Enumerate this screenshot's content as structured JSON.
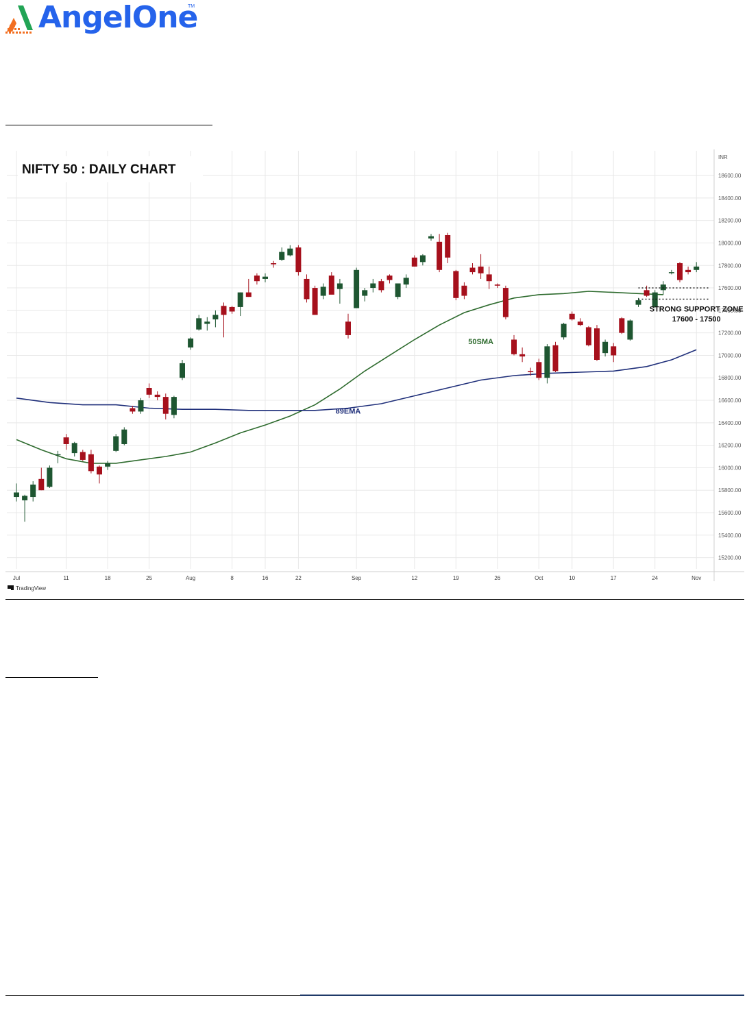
{
  "brand": {
    "name": "AngelOne",
    "tm": "TM",
    "colors": {
      "text": "#2563eb",
      "mark_green": "#22a455",
      "mark_orange": "#f26f21"
    }
  },
  "chart_data": {
    "type": "candlestick",
    "title": "NIFTY 50 : DAILY CHART",
    "currency": "INR",
    "watermark": "TradingView",
    "ylim": [
      15100,
      18820
    ],
    "y_ticks": [
      15200,
      15400,
      15600,
      15800,
      16000,
      16200,
      16400,
      16600,
      16800,
      17000,
      17200,
      17400,
      17600,
      17800,
      18000,
      18200,
      18400,
      18600
    ],
    "y_tick_labels": [
      "15200.00",
      "15400.00",
      "15600.00",
      "15800.00",
      "16000.00",
      "16200.00",
      "16400.00",
      "16600.00",
      "16800.00",
      "17000.00",
      "17200.00",
      "17400.00",
      "17600.00",
      "17800.00",
      "18000.00",
      "18200.00",
      "18400.00",
      "18600.00"
    ],
    "x_ticks": [
      {
        "label": "Jul",
        "i": 0
      },
      {
        "label": "11",
        "i": 6
      },
      {
        "label": "18",
        "i": 11
      },
      {
        "label": "25",
        "i": 16
      },
      {
        "label": "Aug",
        "i": 21
      },
      {
        "label": "8",
        "i": 26
      },
      {
        "label": "16",
        "i": 30
      },
      {
        "label": "22",
        "i": 34
      },
      {
        "label": "Sep",
        "i": 41
      },
      {
        "label": "12",
        "i": 48
      },
      {
        "label": "19",
        "i": 53
      },
      {
        "label": "26",
        "i": 58
      },
      {
        "label": "Oct",
        "i": 63
      },
      {
        "label": "10",
        "i": 67
      },
      {
        "label": "17",
        "i": 72
      },
      {
        "label": "24",
        "i": 77
      },
      {
        "label": "Nov",
        "i": 82
      }
    ],
    "colors": {
      "up": "#1e5631",
      "down": "#a6101c",
      "sma50": "#2e6b2e",
      "ema89": "#1f2f7a",
      "grid": "#e8e8e8"
    },
    "candles": [
      {
        "o": 15740,
        "h": 15860,
        "l": 15700,
        "c": 15780
      },
      {
        "o": 15710,
        "h": 15760,
        "l": 15520,
        "c": 15750
      },
      {
        "o": 15740,
        "h": 15880,
        "l": 15700,
        "c": 15850
      },
      {
        "o": 15900,
        "h": 16000,
        "l": 15800,
        "c": 15800
      },
      {
        "o": 15830,
        "h": 16020,
        "l": 15820,
        "c": 16000
      },
      {
        "o": 16120,
        "h": 16150,
        "l": 16040,
        "c": 16120
      },
      {
        "o": 16270,
        "h": 16300,
        "l": 16160,
        "c": 16210
      },
      {
        "o": 16130,
        "h": 16230,
        "l": 16100,
        "c": 16220
      },
      {
        "o": 16140,
        "h": 16160,
        "l": 16060,
        "c": 16070
      },
      {
        "o": 16120,
        "h": 16160,
        "l": 15950,
        "c": 15970
      },
      {
        "o": 16010,
        "h": 16020,
        "l": 15860,
        "c": 15940
      },
      {
        "o": 16010,
        "h": 16060,
        "l": 15980,
        "c": 16040
      },
      {
        "o": 16150,
        "h": 16300,
        "l": 16140,
        "c": 16280
      },
      {
        "o": 16210,
        "h": 16360,
        "l": 16200,
        "c": 16340
      },
      {
        "o": 16530,
        "h": 16550,
        "l": 16480,
        "c": 16500
      },
      {
        "o": 16500,
        "h": 16620,
        "l": 16480,
        "c": 16600
      },
      {
        "o": 16710,
        "h": 16750,
        "l": 16620,
        "c": 16650
      },
      {
        "o": 16650,
        "h": 16680,
        "l": 16600,
        "c": 16630
      },
      {
        "o": 16630,
        "h": 16660,
        "l": 16430,
        "c": 16480
      },
      {
        "o": 16470,
        "h": 16640,
        "l": 16440,
        "c": 16630
      },
      {
        "o": 16800,
        "h": 16960,
        "l": 16780,
        "c": 16930
      },
      {
        "o": 17070,
        "h": 17160,
        "l": 17050,
        "c": 17150
      },
      {
        "o": 17230,
        "h": 17360,
        "l": 17220,
        "c": 17330
      },
      {
        "o": 17280,
        "h": 17340,
        "l": 17220,
        "c": 17300
      },
      {
        "o": 17320,
        "h": 17400,
        "l": 17250,
        "c": 17360
      },
      {
        "o": 17440,
        "h": 17470,
        "l": 17160,
        "c": 17360
      },
      {
        "o": 17430,
        "h": 17440,
        "l": 17370,
        "c": 17390
      },
      {
        "o": 17430,
        "h": 17560,
        "l": 17350,
        "c": 17560
      },
      {
        "o": 17560,
        "h": 17680,
        "l": 17520,
        "c": 17520
      },
      {
        "o": 17710,
        "h": 17730,
        "l": 17630,
        "c": 17660
      },
      {
        "o": 17680,
        "h": 17730,
        "l": 17650,
        "c": 17700
      },
      {
        "o": 17820,
        "h": 17840,
        "l": 17780,
        "c": 17810
      },
      {
        "o": 17850,
        "h": 17960,
        "l": 17840,
        "c": 17920
      },
      {
        "o": 17890,
        "h": 17980,
        "l": 17880,
        "c": 17950
      },
      {
        "o": 17960,
        "h": 17980,
        "l": 17710,
        "c": 17740
      },
      {
        "o": 17680,
        "h": 17720,
        "l": 17470,
        "c": 17500
      },
      {
        "o": 17600,
        "h": 17620,
        "l": 17360,
        "c": 17360
      },
      {
        "o": 17530,
        "h": 17640,
        "l": 17500,
        "c": 17610
      },
      {
        "o": 17710,
        "h": 17740,
        "l": 17570,
        "c": 17540
      },
      {
        "o": 17590,
        "h": 17680,
        "l": 17460,
        "c": 17640
      },
      {
        "o": 17300,
        "h": 17370,
        "l": 17150,
        "c": 17180
      },
      {
        "o": 17420,
        "h": 17780,
        "l": 17420,
        "c": 17760
      },
      {
        "o": 17530,
        "h": 17600,
        "l": 17480,
        "c": 17580
      },
      {
        "o": 17600,
        "h": 17680,
        "l": 17560,
        "c": 17640
      },
      {
        "o": 17660,
        "h": 17680,
        "l": 17560,
        "c": 17580
      },
      {
        "o": 17710,
        "h": 17720,
        "l": 17640,
        "c": 17670
      },
      {
        "o": 17520,
        "h": 17640,
        "l": 17500,
        "c": 17640
      },
      {
        "o": 17630,
        "h": 17720,
        "l": 17600,
        "c": 17690
      },
      {
        "o": 17870,
        "h": 17890,
        "l": 17790,
        "c": 17790
      },
      {
        "o": 17830,
        "h": 17900,
        "l": 17800,
        "c": 17890
      },
      {
        "o": 18040,
        "h": 18080,
        "l": 18020,
        "c": 18060
      },
      {
        "o": 18010,
        "h": 18080,
        "l": 17740,
        "c": 17760
      },
      {
        "o": 18070,
        "h": 18090,
        "l": 17820,
        "c": 17870
      },
      {
        "o": 17750,
        "h": 17760,
        "l": 17490,
        "c": 17510
      },
      {
        "o": 17620,
        "h": 17650,
        "l": 17500,
        "c": 17530
      },
      {
        "o": 17780,
        "h": 17820,
        "l": 17720,
        "c": 17740
      },
      {
        "o": 17790,
        "h": 17900,
        "l": 17680,
        "c": 17730
      },
      {
        "o": 17720,
        "h": 17790,
        "l": 17590,
        "c": 17660
      },
      {
        "o": 17630,
        "h": 17640,
        "l": 17600,
        "c": 17620
      },
      {
        "o": 17600,
        "h": 17620,
        "l": 17320,
        "c": 17340
      },
      {
        "o": 17140,
        "h": 17180,
        "l": 17000,
        "c": 17010
      },
      {
        "o": 17010,
        "h": 17070,
        "l": 16940,
        "c": 16990
      },
      {
        "o": 16860,
        "h": 16890,
        "l": 16820,
        "c": 16850
      },
      {
        "o": 16940,
        "h": 16970,
        "l": 16780,
        "c": 16800
      },
      {
        "o": 16800,
        "h": 17100,
        "l": 16750,
        "c": 17080
      },
      {
        "o": 17090,
        "h": 17120,
        "l": 16850,
        "c": 16860
      },
      {
        "o": 17160,
        "h": 17290,
        "l": 17140,
        "c": 17280
      },
      {
        "o": 17370,
        "h": 17390,
        "l": 17310,
        "c": 17320
      },
      {
        "o": 17300,
        "h": 17330,
        "l": 17260,
        "c": 17270
      },
      {
        "o": 17250,
        "h": 17260,
        "l": 17080,
        "c": 17090
      },
      {
        "o": 17240,
        "h": 17270,
        "l": 16950,
        "c": 16960
      },
      {
        "o": 17020,
        "h": 17140,
        "l": 16990,
        "c": 17120
      },
      {
        "o": 17080,
        "h": 17110,
        "l": 16940,
        "c": 17000
      },
      {
        "o": 17330,
        "h": 17340,
        "l": 17190,
        "c": 17200
      },
      {
        "o": 17140,
        "h": 17320,
        "l": 17130,
        "c": 17310
      },
      {
        "o": 17450,
        "h": 17510,
        "l": 17430,
        "c": 17490
      },
      {
        "o": 17580,
        "h": 17620,
        "l": 17520,
        "c": 17530
      },
      {
        "o": 17430,
        "h": 17580,
        "l": 17420,
        "c": 17560
      },
      {
        "o": 17580,
        "h": 17660,
        "l": 17540,
        "c": 17630
      },
      {
        "o": 17740,
        "h": 17760,
        "l": 17720,
        "c": 17740
      },
      {
        "o": 17820,
        "h": 17830,
        "l": 17650,
        "c": 17670
      },
      {
        "o": 17760,
        "h": 17790,
        "l": 17720,
        "c": 17740
      },
      {
        "o": 17760,
        "h": 17830,
        "l": 17740,
        "c": 17790
      }
    ],
    "series": [
      {
        "name": "50SMA",
        "points": [
          [
            0,
            16250
          ],
          [
            3,
            16160
          ],
          [
            6,
            16080
          ],
          [
            9,
            16040
          ],
          [
            12,
            16040
          ],
          [
            15,
            16070
          ],
          [
            18,
            16100
          ],
          [
            21,
            16140
          ],
          [
            24,
            16220
          ],
          [
            27,
            16310
          ],
          [
            30,
            16380
          ],
          [
            33,
            16460
          ],
          [
            36,
            16560
          ],
          [
            39,
            16700
          ],
          [
            42,
            16860
          ],
          [
            45,
            17000
          ],
          [
            48,
            17140
          ],
          [
            51,
            17270
          ],
          [
            54,
            17380
          ],
          [
            57,
            17450
          ],
          [
            60,
            17510
          ],
          [
            63,
            17540
          ],
          [
            66,
            17550
          ],
          [
            69,
            17570
          ],
          [
            72,
            17560
          ],
          [
            75,
            17550
          ],
          [
            78,
            17540
          ]
        ]
      },
      {
        "name": "89EMA",
        "points": [
          [
            0,
            16620
          ],
          [
            4,
            16580
          ],
          [
            8,
            16560
          ],
          [
            12,
            16560
          ],
          [
            16,
            16530
          ],
          [
            20,
            16520
          ],
          [
            24,
            16520
          ],
          [
            28,
            16510
          ],
          [
            32,
            16510
          ],
          [
            36,
            16510
          ],
          [
            40,
            16530
          ],
          [
            44,
            16570
          ],
          [
            48,
            16640
          ],
          [
            52,
            16710
          ],
          [
            56,
            16780
          ],
          [
            60,
            16820
          ],
          [
            64,
            16840
          ],
          [
            68,
            16850
          ],
          [
            72,
            16860
          ],
          [
            76,
            16900
          ],
          [
            79,
            16960
          ],
          [
            82,
            17050
          ]
        ]
      }
    ],
    "annotations": [
      {
        "text": "50SMA",
        "i": 56,
        "y": 17100
      },
      {
        "text": "89EMA",
        "i": 40,
        "y": 16480
      },
      {
        "text": "STRONG SUPPORT ZONE",
        "i": 82,
        "y": 17390
      },
      {
        "text": "17600 - 17500",
        "i": 82,
        "y": 17300
      }
    ],
    "support_levels": [
      17600,
      17500
    ]
  }
}
